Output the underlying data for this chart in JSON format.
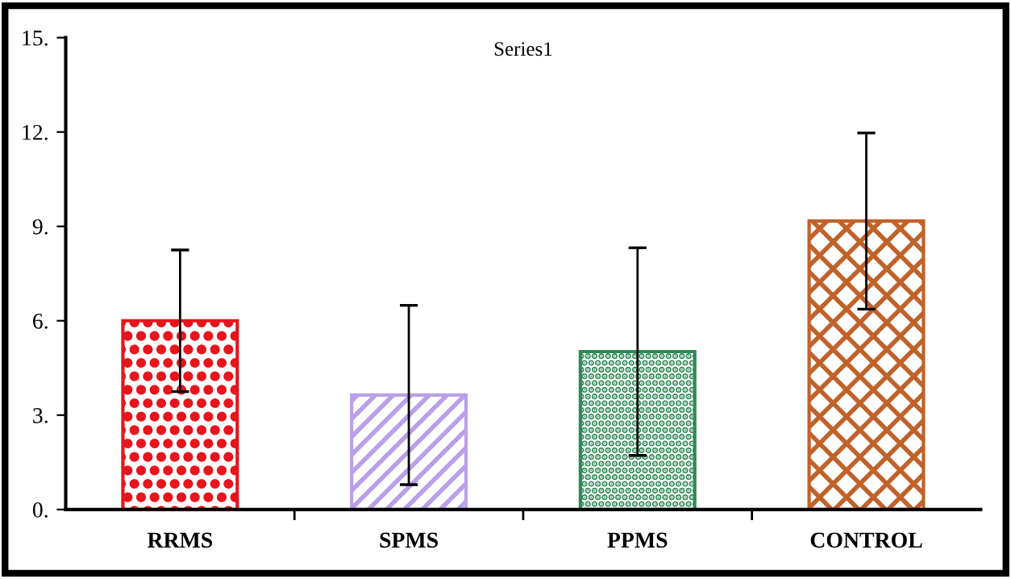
{
  "chart_data": {
    "type": "bar",
    "title": "Series1",
    "categories": [
      "RRMS",
      "SPMS",
      "PPMS",
      "CONTROL"
    ],
    "values": [
      6.0,
      3.64,
      5.02,
      9.17
    ],
    "errors": [
      2.25,
      2.85,
      3.3,
      2.8
    ],
    "colors": [
      "#e8141c",
      "#b9a0e8",
      "#2e8b57",
      "#c0622a"
    ],
    "ylim": [
      0,
      15
    ],
    "yticks": [
      {
        "value": 0,
        "label": "0."
      },
      {
        "value": 3,
        "label": "3."
      },
      {
        "value": 6,
        "label": "6."
      },
      {
        "value": 9,
        "label": "9."
      },
      {
        "value": 12,
        "label": "12."
      },
      {
        "value": 15,
        "label": "15."
      }
    ],
    "grid": false,
    "legend": false
  }
}
